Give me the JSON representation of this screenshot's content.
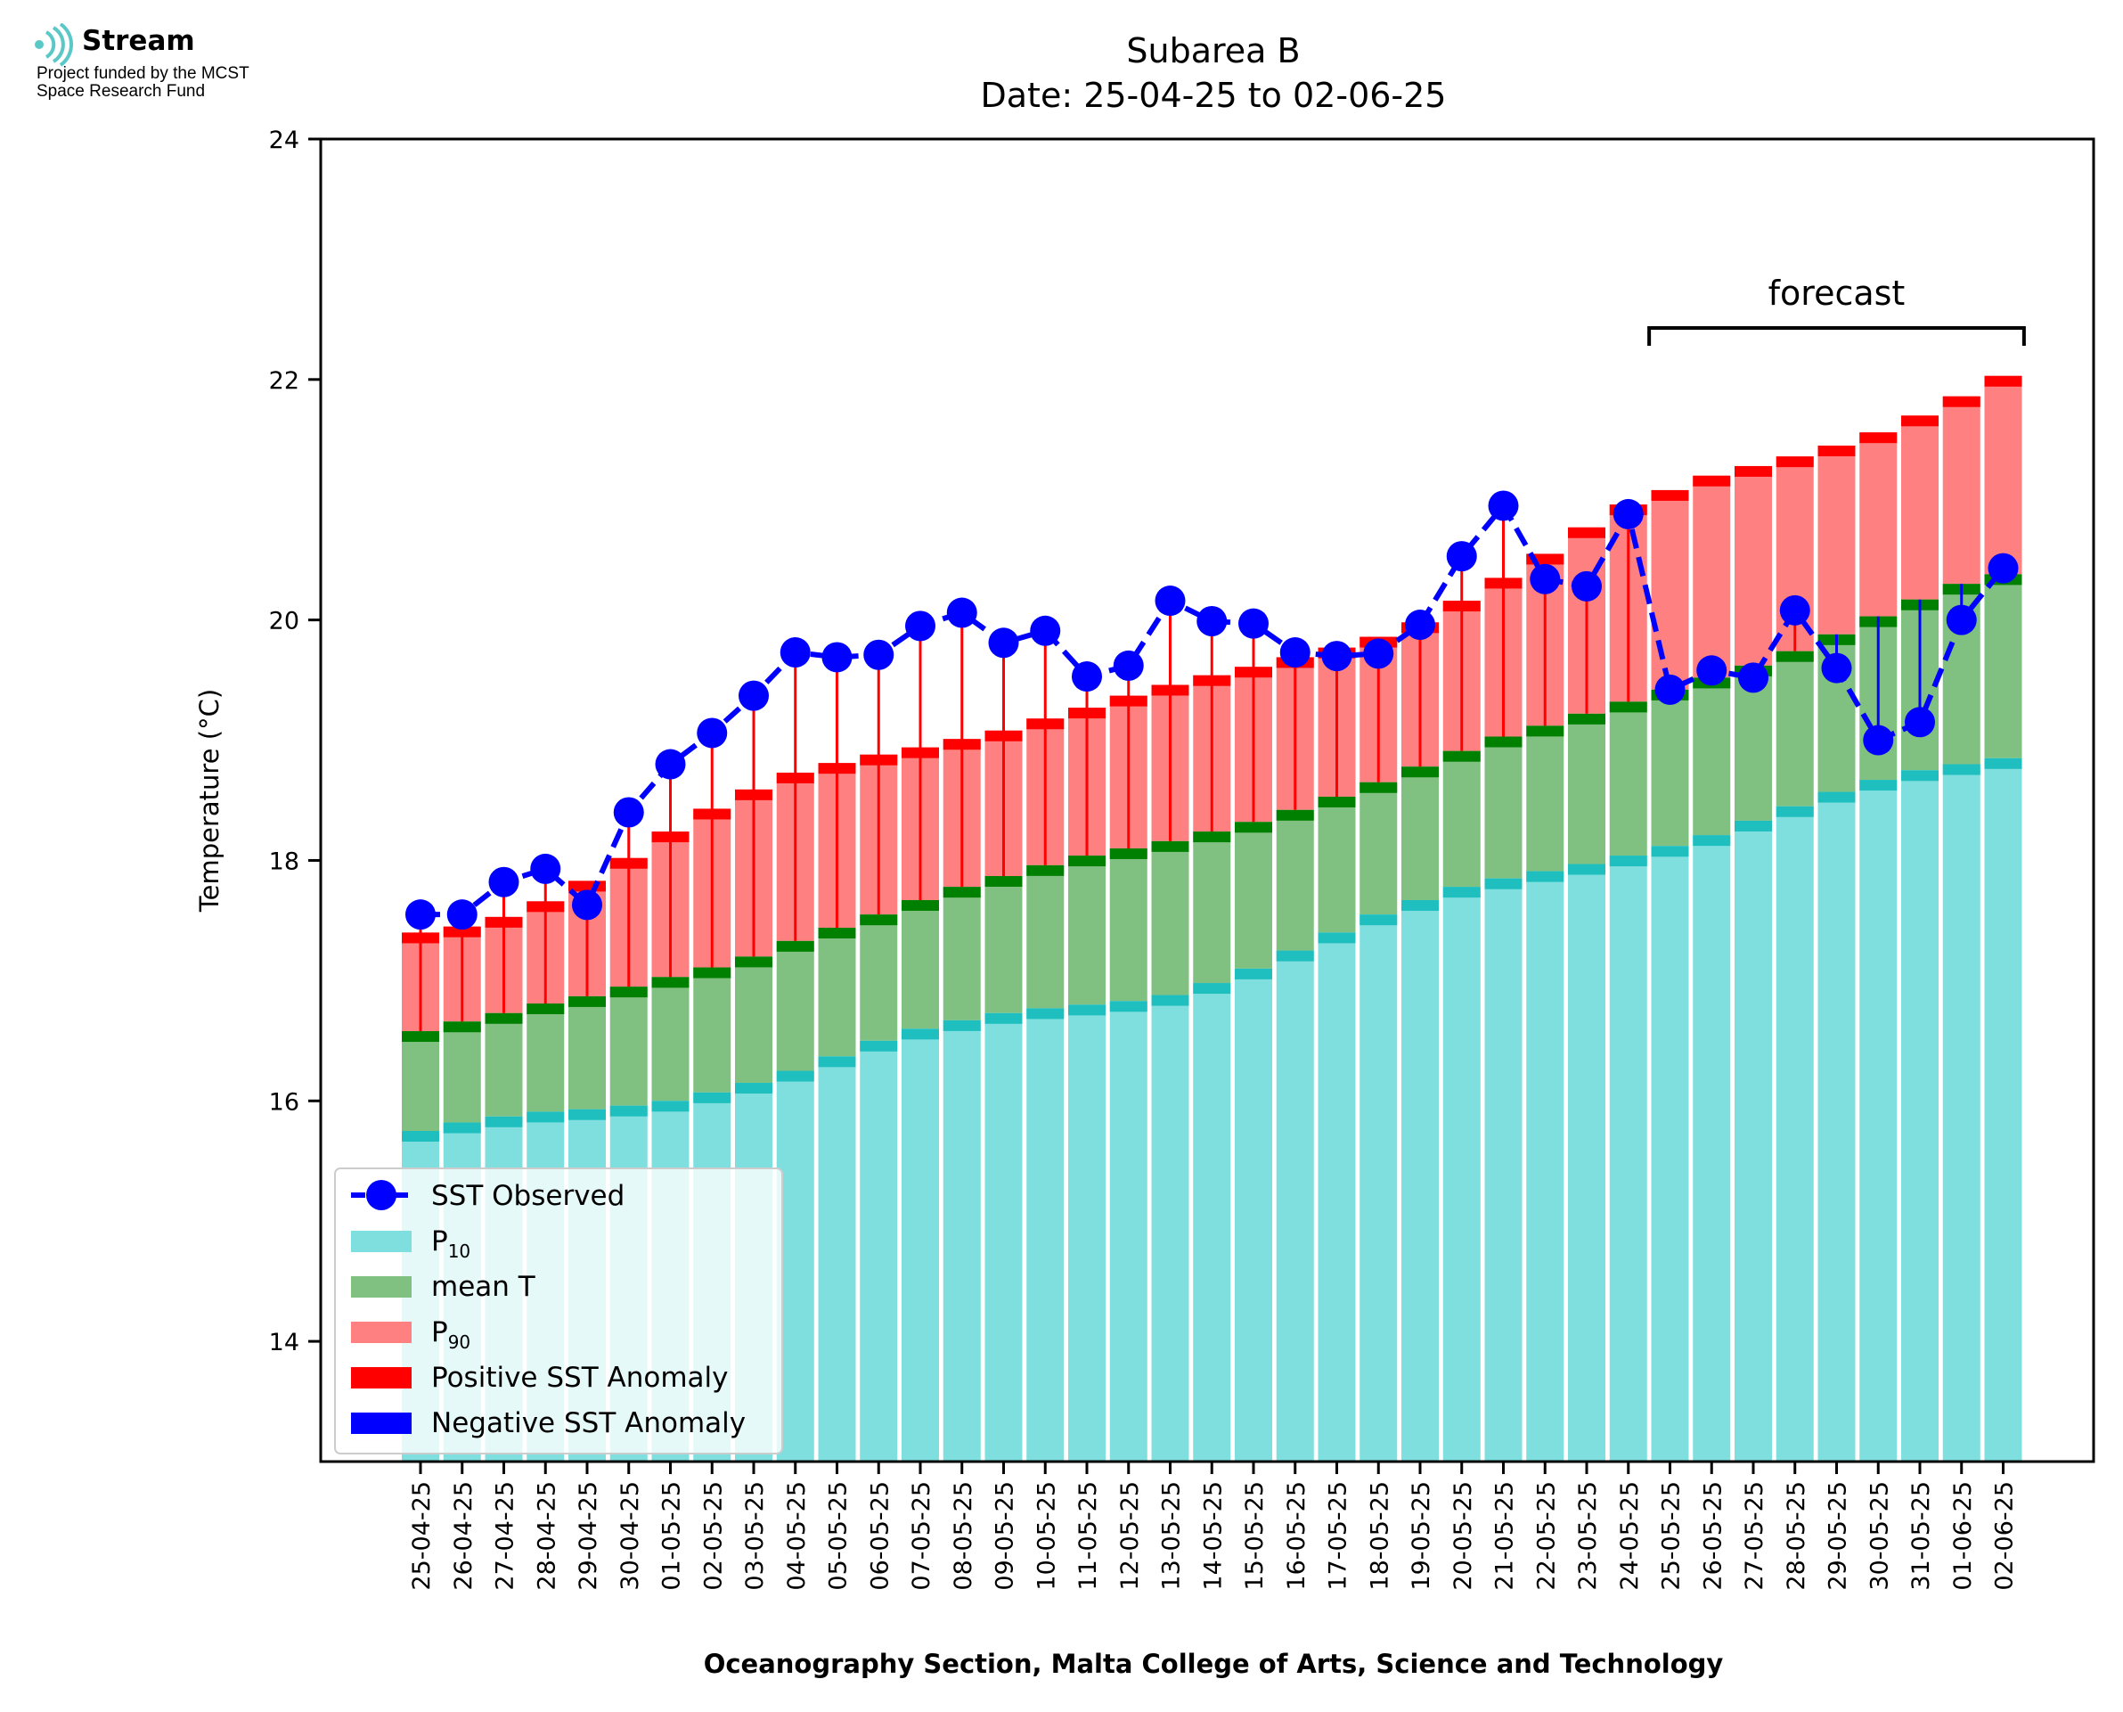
{
  "logo": {
    "name": "Stream",
    "line1": "Project funded by the MCST",
    "line2": "Space Research Fund"
  },
  "colors": {
    "p10": "#7fdfdf",
    "p10_edge": "#1fbfbf",
    "mean": "#80c080",
    "mean_edge": "#008000",
    "p90": "#ff8080",
    "p90_edge": "#ff0000",
    "observed": "#0000ff",
    "positive_anomaly": "#ff0000",
    "negative_anomaly": "#0000ff"
  },
  "chart_data": {
    "type": "bar",
    "title": "Subarea B",
    "subtitle": "Date: 25-04-25 to 02-06-25",
    "xlabel": "Oceanography Section, Malta College of Arts, Science and Technology",
    "ylabel": "Temperature (°C)",
    "ylim": [
      13,
      24
    ],
    "yticks": [
      14,
      16,
      18,
      20,
      22,
      24
    ],
    "grid": false,
    "legend_placement": "lower-left",
    "categories": [
      "25-04-25",
      "26-04-25",
      "27-04-25",
      "28-04-25",
      "29-04-25",
      "30-04-25",
      "01-05-25",
      "02-05-25",
      "03-05-25",
      "04-05-25",
      "05-05-25",
      "06-05-25",
      "07-05-25",
      "08-05-25",
      "09-05-25",
      "10-05-25",
      "11-05-25",
      "12-05-25",
      "13-05-25",
      "14-05-25",
      "15-05-25",
      "16-05-25",
      "17-05-25",
      "18-05-25",
      "19-05-25",
      "20-05-25",
      "21-05-25",
      "22-05-25",
      "23-05-25",
      "24-05-25",
      "25-05-25",
      "26-05-25",
      "27-05-25",
      "28-05-25",
      "29-05-25",
      "30-05-25",
      "31-05-25",
      "01-06-25",
      "02-06-25"
    ],
    "series": [
      {
        "name": "P10",
        "values": [
          15.75,
          15.82,
          15.87,
          15.91,
          15.93,
          15.96,
          16.0,
          16.07,
          16.15,
          16.25,
          16.37,
          16.5,
          16.6,
          16.67,
          16.73,
          16.77,
          16.8,
          16.83,
          16.88,
          16.98,
          17.1,
          17.25,
          17.4,
          17.55,
          17.67,
          17.78,
          17.85,
          17.91,
          17.97,
          18.04,
          18.12,
          18.21,
          18.33,
          18.45,
          18.57,
          18.67,
          18.75,
          18.8,
          18.85
        ]
      },
      {
        "name": "mean T",
        "values": [
          16.58,
          16.66,
          16.73,
          16.81,
          16.87,
          16.95,
          17.03,
          17.11,
          17.2,
          17.33,
          17.44,
          17.55,
          17.67,
          17.78,
          17.87,
          17.96,
          18.04,
          18.1,
          18.16,
          18.24,
          18.32,
          18.42,
          18.53,
          18.65,
          18.78,
          18.91,
          19.03,
          19.12,
          19.22,
          19.32,
          19.42,
          19.52,
          19.62,
          19.74,
          19.88,
          20.03,
          20.17,
          20.3,
          20.38
        ]
      },
      {
        "name": "P90",
        "values": [
          17.4,
          17.45,
          17.53,
          17.66,
          17.83,
          18.02,
          18.24,
          18.43,
          18.59,
          18.73,
          18.81,
          18.88,
          18.94,
          19.01,
          19.08,
          19.18,
          19.27,
          19.37,
          19.46,
          19.54,
          19.61,
          19.69,
          19.77,
          19.86,
          19.98,
          20.16,
          20.35,
          20.55,
          20.77,
          20.96,
          21.08,
          21.2,
          21.28,
          21.36,
          21.45,
          21.56,
          21.7,
          21.86,
          22.03
        ]
      },
      {
        "name": "SST Observed",
        "values": [
          17.55,
          17.55,
          17.82,
          17.93,
          17.63,
          18.4,
          18.8,
          19.06,
          19.37,
          19.73,
          19.69,
          19.71,
          19.95,
          20.06,
          19.81,
          19.91,
          19.53,
          19.62,
          20.16,
          19.99,
          19.97,
          19.73,
          19.7,
          19.72,
          19.96,
          20.53,
          20.95,
          20.34,
          20.28,
          20.88,
          19.42,
          19.58,
          19.52,
          20.08,
          19.6,
          19.0,
          19.15,
          20.0,
          20.43
        ]
      }
    ],
    "forecast_label": "forecast",
    "forecast_range": [
      "25-05-25",
      "02-06-25"
    ],
    "legend": {
      "observed": "SST Observed",
      "p10": "P",
      "p10_sub": "10",
      "mean": "mean T",
      "p90": "P",
      "p90_sub": "90",
      "positive": "Positive SST Anomaly",
      "negative": "Negative SST Anomaly"
    }
  }
}
